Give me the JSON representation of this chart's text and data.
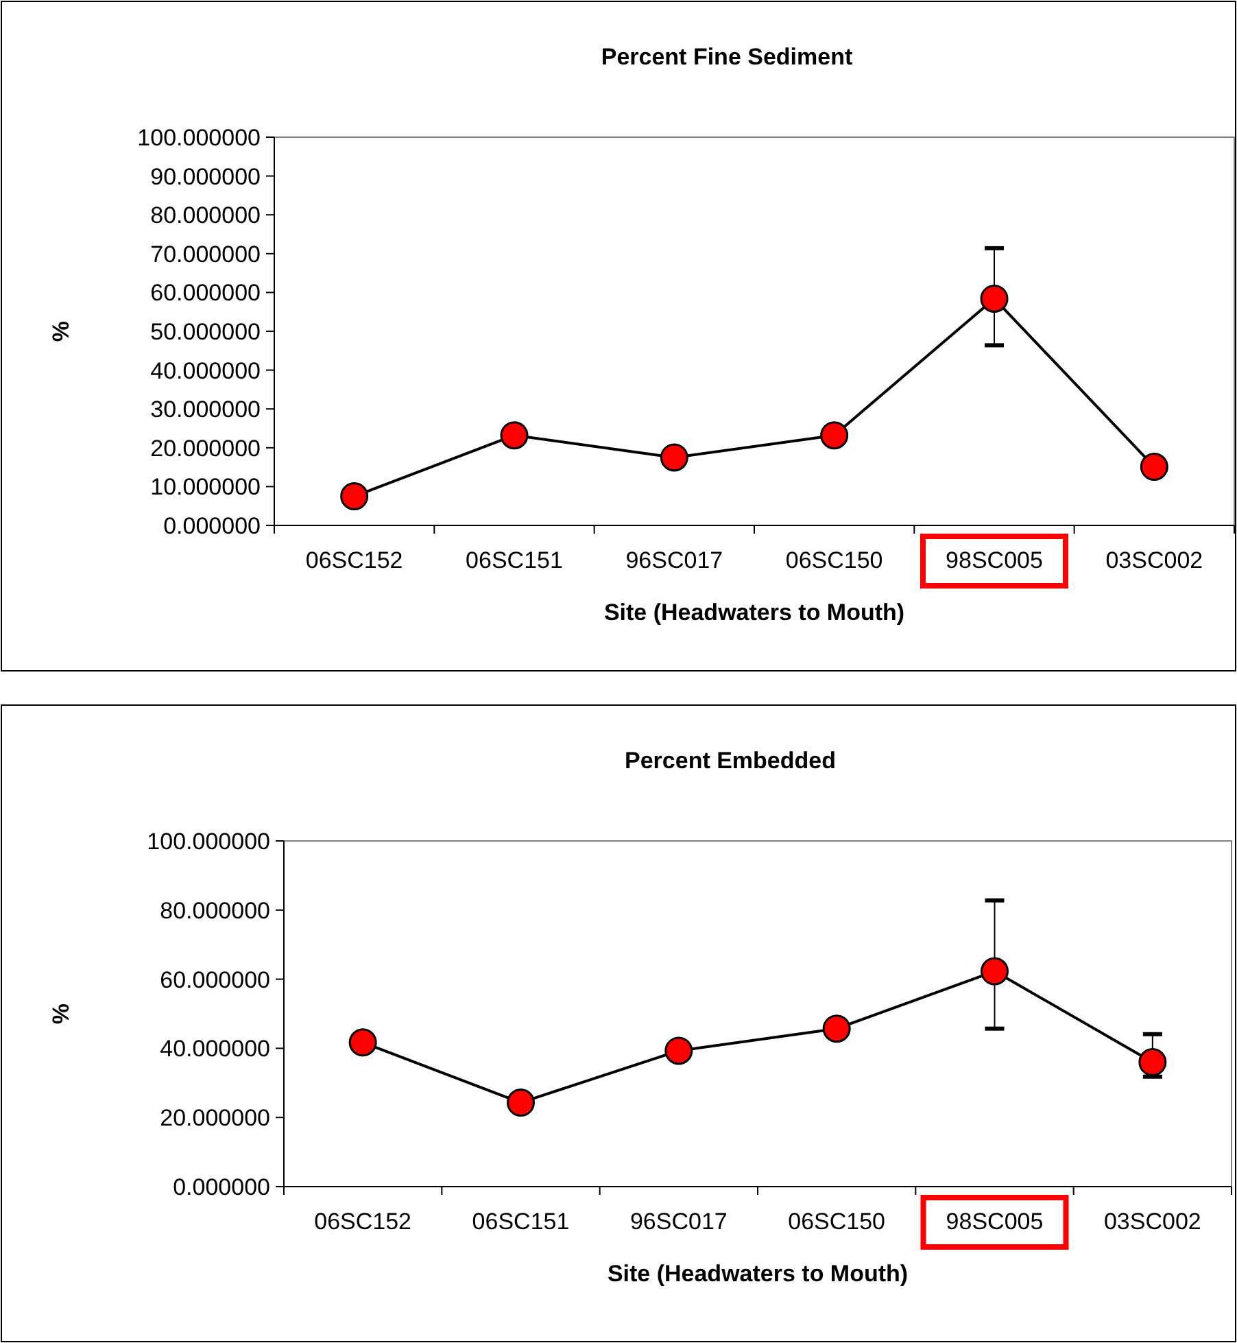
{
  "chart_data": [
    {
      "type": "line",
      "title": "Percent Fine Sediment",
      "xlabel": "Site (Headwaters to Mouth)",
      "ylabel": "%",
      "categories": [
        "06SC152",
        "06SC151",
        "96SC017",
        "06SC150",
        "98SC005",
        "03SC002"
      ],
      "series": [
        {
          "color": "#ff0000",
          "values": [
            7.5,
            23.2,
            17.5,
            23.2,
            58.4,
            15.1
          ],
          "errors": [
            null,
            null,
            null,
            null,
            [
              46.4,
              71.4
            ],
            null
          ]
        }
      ],
      "ylim": [
        0,
        100
      ],
      "yticks": [
        {
          "value": 0,
          "label": "0.000000"
        },
        {
          "value": 10,
          "label": "10.000000"
        },
        {
          "value": 20,
          "label": "20.000000"
        },
        {
          "value": 30,
          "label": "30.000000"
        },
        {
          "value": 40,
          "label": "40.000000"
        },
        {
          "value": 50,
          "label": "50.000000"
        },
        {
          "value": 60,
          "label": "60.000000"
        },
        {
          "value": 70,
          "label": "70.000000"
        },
        {
          "value": 80,
          "label": "80.000000"
        },
        {
          "value": 90,
          "label": "90.000000"
        },
        {
          "value": 100,
          "label": "100.000000"
        }
      ],
      "marker": "circle",
      "line_style": "solid",
      "grid": false
    },
    {
      "type": "line",
      "title": "Percent Embedded",
      "xlabel": "Site (Headwaters to Mouth)",
      "ylabel": "%",
      "categories": [
        "06SC152",
        "06SC151",
        "96SC017",
        "06SC150",
        "98SC005",
        "03SC002"
      ],
      "series": [
        {
          "color": "#ff0000",
          "values": [
            41.7,
            24.3,
            39.3,
            45.7,
            62.3,
            36.0
          ],
          "errors": [
            null,
            null,
            null,
            null,
            [
              45.7,
              82.8
            ],
            [
              31.8,
              44.1
            ]
          ]
        }
      ],
      "ylim": [
        0,
        100
      ],
      "yticks": [
        {
          "value": 0,
          "label": "0.000000"
        },
        {
          "value": 20,
          "label": "20.000000"
        },
        {
          "value": 40,
          "label": "40.000000"
        },
        {
          "value": 60,
          "label": "60.000000"
        },
        {
          "value": 80,
          "label": "80.000000"
        },
        {
          "value": 100,
          "label": "100.000000"
        }
      ],
      "marker": "circle",
      "line_style": "solid",
      "grid": false
    }
  ]
}
